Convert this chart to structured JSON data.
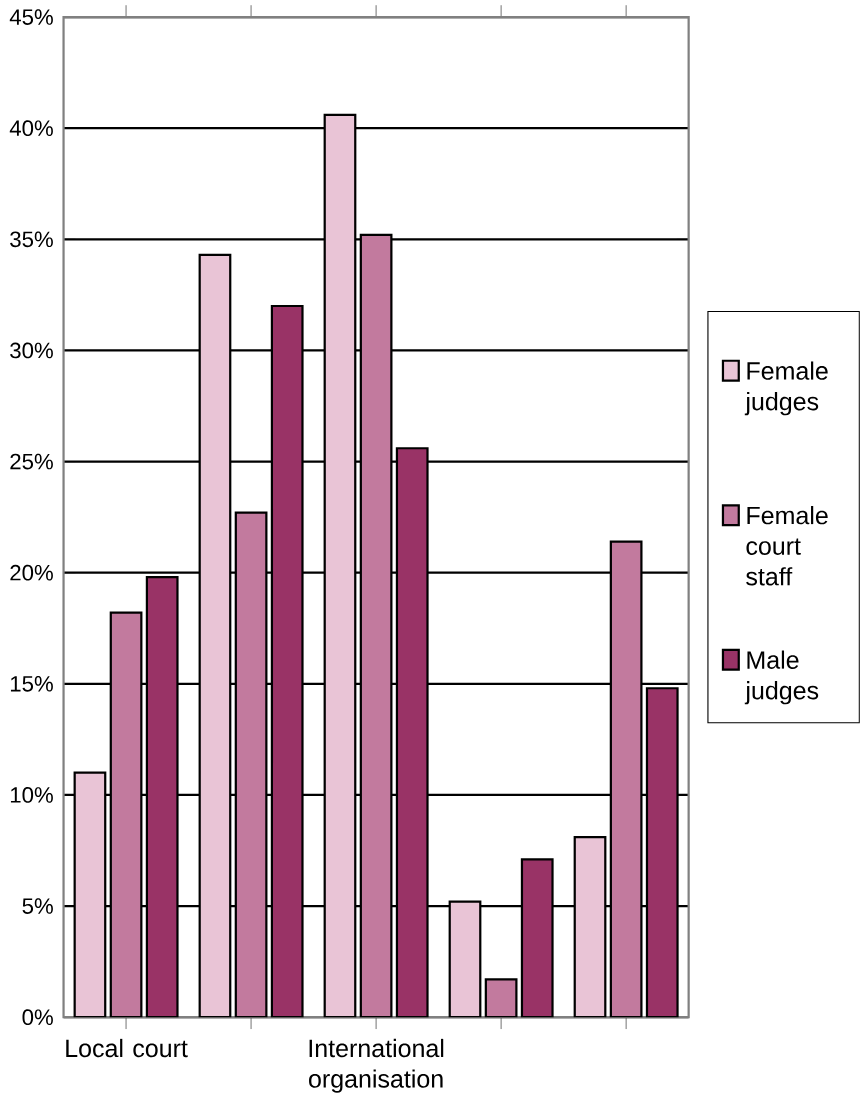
{
  "chart_data": {
    "type": "bar",
    "categories": [
      "Local court",
      null,
      "International organisation",
      null,
      null
    ],
    "series": [
      {
        "name": "Female judges",
        "color": "#e9c4d6",
        "values": [
          11,
          34.3,
          40.6,
          5.2,
          8.1
        ]
      },
      {
        "name": "Female court staff",
        "color": "#c27a9e",
        "values": [
          18.2,
          22.7,
          35.2,
          1.7,
          21.4
        ]
      },
      {
        "name": "Male judges",
        "color": "#993366",
        "values": [
          19.8,
          32,
          25.6,
          7.1,
          14.8
        ]
      }
    ],
    "ylim": [
      0,
      45
    ],
    "yticks": [
      {
        "value": 0,
        "label": "0%"
      },
      {
        "value": 5,
        "label": "5%"
      },
      {
        "value": 10,
        "label": "10%"
      },
      {
        "value": 15,
        "label": "15%"
      },
      {
        "value": 20,
        "label": "20%"
      },
      {
        "value": 25,
        "label": "25%"
      },
      {
        "value": 30,
        "label": "30%"
      },
      {
        "value": 35,
        "label": "35%"
      },
      {
        "value": 40,
        "label": "40%"
      },
      {
        "value": 45,
        "label": "45%"
      }
    ],
    "grid": "y",
    "legend": "right"
  }
}
